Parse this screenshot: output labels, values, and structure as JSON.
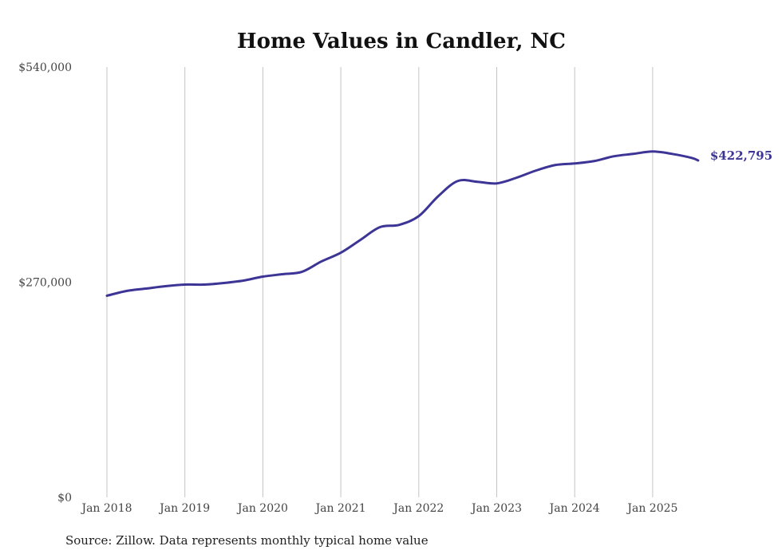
{
  "chart_data": {
    "type": "line",
    "title": "Home Values in Candler, NC",
    "xlabel": "",
    "ylabel": "",
    "ylim": [
      0,
      540000
    ],
    "y_ticks": [
      {
        "value": 0,
        "label": "$0"
      },
      {
        "value": 270000,
        "label": "$270,000"
      },
      {
        "value": 540000,
        "label": "$540,000"
      }
    ],
    "x_ticks": [
      "Jan 2018",
      "Jan 2019",
      "Jan 2020",
      "Jan 2021",
      "Jan 2022",
      "Jan 2023",
      "Jan 2024",
      "Jan 2025"
    ],
    "grid": "vertical",
    "line_color": "#3d3596",
    "series": [
      {
        "name": "Typical home value",
        "x": [
          "2018-01",
          "2018-04",
          "2018-07",
          "2018-10",
          "2019-01",
          "2019-04",
          "2019-07",
          "2019-10",
          "2020-01",
          "2020-04",
          "2020-07",
          "2020-10",
          "2021-01",
          "2021-04",
          "2021-07",
          "2021-10",
          "2022-01",
          "2022-04",
          "2022-07",
          "2022-10",
          "2023-01",
          "2023-04",
          "2023-07",
          "2023-10",
          "2024-01",
          "2024-04",
          "2024-07",
          "2024-10",
          "2025-01",
          "2025-04",
          "2025-07",
          "2025-08"
        ],
        "values": [
          253000,
          259000,
          262000,
          265000,
          267000,
          267000,
          269000,
          272000,
          277000,
          280000,
          283000,
          296000,
          307000,
          323000,
          339000,
          342000,
          353000,
          378000,
          397000,
          396000,
          394000,
          401000,
          410000,
          417000,
          419000,
          422000,
          428000,
          431000,
          434000,
          431000,
          426000,
          422795
        ]
      }
    ],
    "end_label": "$422,795"
  },
  "source": "Source: Zillow. Data represents monthly typical home value"
}
